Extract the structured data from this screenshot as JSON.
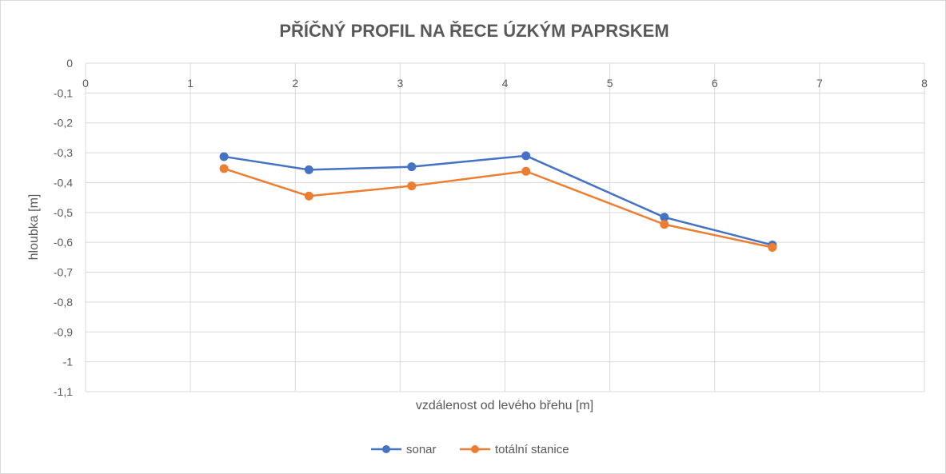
{
  "chart_data": {
    "type": "scatter",
    "title": "PŘÍČNÝ PROFIL NA ŘECE ÚZKÝM PAPRSKEM",
    "xlabel": "vzdálenost od levého břehu [m]",
    "ylabel": "hloubka [m]",
    "xlim": [
      0,
      8
    ],
    "ylim": [
      -1.1,
      0
    ],
    "x_ticks": [
      0,
      1,
      2,
      3,
      4,
      5,
      6,
      7,
      8
    ],
    "x_tick_labels": [
      "0",
      "1",
      "2",
      "3",
      "4",
      "5",
      "6",
      "7",
      "8"
    ],
    "y_ticks": [
      0,
      -0.1,
      -0.2,
      -0.3,
      -0.4,
      -0.5,
      -0.6,
      -0.7,
      -0.8,
      -0.9,
      -1,
      -1.1
    ],
    "y_tick_labels": [
      "0",
      "-0,1",
      "-0,2",
      "-0,3",
      "-0,4",
      "-0,5",
      "-0,6",
      "-0,7",
      "-0,8",
      "-0,9",
      "-1",
      "-1,1"
    ],
    "grid": true,
    "legend_position": "bottom",
    "series": [
      {
        "name": "sonar",
        "color": "#4472c4",
        "points": [
          {
            "x": 1.32,
            "y": -0.313
          },
          {
            "x": 2.13,
            "y": -0.357
          },
          {
            "x": 3.11,
            "y": -0.347
          },
          {
            "x": 4.2,
            "y": -0.31
          },
          {
            "x": 5.52,
            "y": -0.516
          },
          {
            "x": 6.55,
            "y": -0.609
          }
        ]
      },
      {
        "name": "totální stanice",
        "color": "#ed7d31",
        "points": [
          {
            "x": 1.32,
            "y": -0.353
          },
          {
            "x": 2.13,
            "y": -0.445
          },
          {
            "x": 3.11,
            "y": -0.411
          },
          {
            "x": 4.2,
            "y": -0.362
          },
          {
            "x": 5.52,
            "y": -0.54
          },
          {
            "x": 6.55,
            "y": -0.617
          }
        ]
      }
    ]
  }
}
